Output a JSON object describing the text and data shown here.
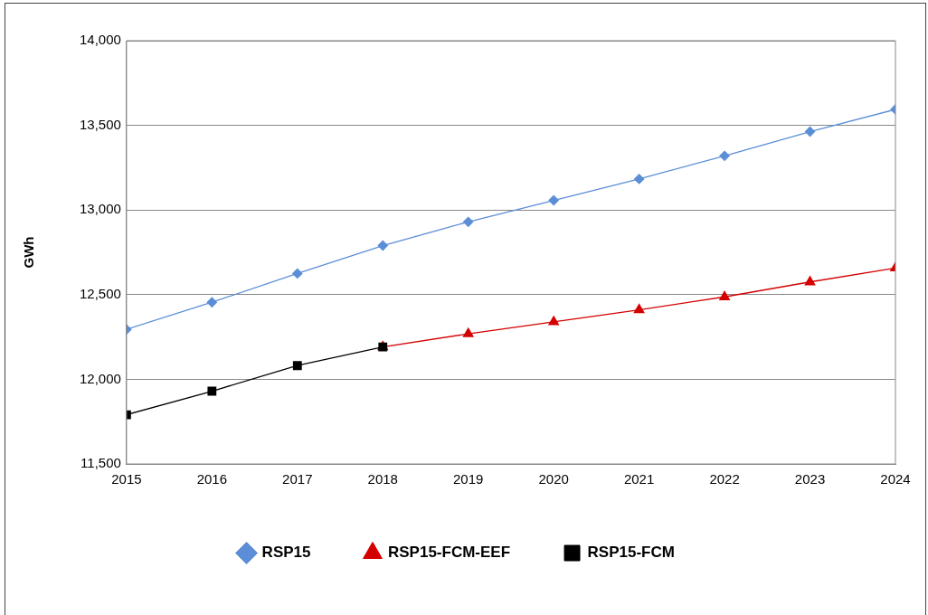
{
  "chart_data": {
    "type": "line",
    "ylabel": "GWh",
    "x": [
      2015,
      2016,
      2017,
      2018,
      2019,
      2020,
      2021,
      2022,
      2023,
      2024
    ],
    "series": [
      {
        "name": "RSP15",
        "color": "#5b8ed6",
        "marker": "diamond",
        "values": [
          12295,
          12455,
          12625,
          12790,
          12930,
          13057,
          13183,
          13320,
          13463,
          13594
        ]
      },
      {
        "name": "RSP15-FCM-EEF",
        "color": "#d40000",
        "marker": "triangle",
        "values": [
          null,
          null,
          null,
          12191,
          12269,
          12339,
          12410,
          12487,
          12575,
          12657
        ]
      },
      {
        "name": "RSP15-FCM",
        "color": "#000000",
        "marker": "square",
        "values": [
          11791,
          11930,
          12081,
          12191,
          null,
          null,
          null,
          null,
          null,
          null
        ]
      }
    ],
    "xlim": [
      2015,
      2024
    ],
    "xticks": [
      2015,
      2016,
      2017,
      2018,
      2019,
      2020,
      2021,
      2022,
      2023,
      2024
    ],
    "ylim": [
      11500,
      14000
    ],
    "yticks": [
      {
        "value": 11500,
        "label": "11,500"
      },
      {
        "value": 12000,
        "label": "12,000"
      },
      {
        "value": 12500,
        "label": "12,500"
      },
      {
        "value": 13000,
        "label": "13,000"
      },
      {
        "value": 13500,
        "label": "13,500"
      },
      {
        "value": 14000,
        "label": "14,000"
      }
    ],
    "grid": "y",
    "legend": "bottom",
    "line_style": "solid"
  }
}
